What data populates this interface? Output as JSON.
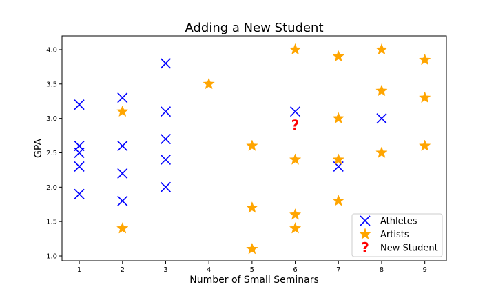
{
  "chart_data": {
    "type": "scatter",
    "title": "Adding a New Student",
    "xlabel": "Number of Small Seminars",
    "ylabel": "GPA",
    "xlim": [
      0.6,
      9.5
    ],
    "ylim": [
      0.93,
      4.2
    ],
    "xticks": [
      1,
      2,
      3,
      4,
      5,
      6,
      7,
      8,
      9
    ],
    "yticks": [
      1.0,
      1.5,
      2.0,
      2.5,
      3.0,
      3.5,
      4.0
    ],
    "grid": false,
    "legend_position": "lower-right",
    "series": [
      {
        "name": "Athletes",
        "marker": "x",
        "color": "#0000ff",
        "points": [
          [
            1,
            3.2
          ],
          [
            1,
            2.6
          ],
          [
            1,
            2.5
          ],
          [
            1,
            2.3
          ],
          [
            1,
            1.9
          ],
          [
            2,
            3.3
          ],
          [
            2,
            2.6
          ],
          [
            2,
            2.2
          ],
          [
            2,
            1.8
          ],
          [
            3,
            3.8
          ],
          [
            3,
            3.1
          ],
          [
            3,
            2.7
          ],
          [
            3,
            2.4
          ],
          [
            3,
            2.0
          ],
          [
            6,
            3.1
          ],
          [
            7,
            2.3
          ],
          [
            8,
            3.0
          ]
        ]
      },
      {
        "name": "Artists",
        "marker": "star",
        "color": "#ffa500",
        "points": [
          [
            2,
            3.1
          ],
          [
            2,
            1.4
          ],
          [
            4,
            3.5
          ],
          [
            5,
            2.6
          ],
          [
            5,
            1.7
          ],
          [
            5,
            1.1
          ],
          [
            6,
            4.0
          ],
          [
            6,
            2.4
          ],
          [
            6,
            1.6
          ],
          [
            6,
            1.4
          ],
          [
            7,
            3.9
          ],
          [
            7,
            3.0
          ],
          [
            7,
            2.4
          ],
          [
            7,
            1.8
          ],
          [
            8,
            4.0
          ],
          [
            8,
            3.4
          ],
          [
            8,
            2.5
          ],
          [
            9,
            3.85
          ],
          [
            9,
            3.3
          ],
          [
            9,
            2.6
          ]
        ]
      },
      {
        "name": "New Student",
        "marker": "?",
        "color": "#ff0000",
        "points": [
          [
            6,
            2.9
          ]
        ]
      }
    ]
  }
}
